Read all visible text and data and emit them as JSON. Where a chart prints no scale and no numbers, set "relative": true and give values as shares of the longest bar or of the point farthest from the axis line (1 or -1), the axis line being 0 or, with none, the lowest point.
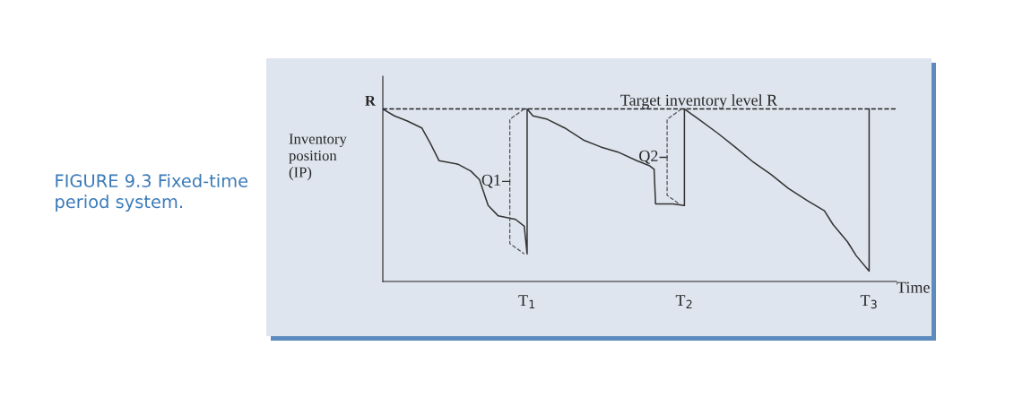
{
  "chart_data": {
    "type": "line",
    "title": "FIGURE 9.3 Fixed-time period system.",
    "xlabel": "Time",
    "ylabel": "Inventory\nposition\n(IP)",
    "relative": true,
    "xlim": [
      0,
      3.56
    ],
    "xticks": [
      {
        "value": 1,
        "label": "T$_{1}$"
      },
      {
        "value": 2.09,
        "label": "T$_{2}$"
      },
      {
        "value": 3.37,
        "label": "T$_{3}$"
      }
    ],
    "series": [
      {
        "color": "#333333",
        "x": [
          0,
          0.08,
          0.17,
          0.27,
          0.33,
          0.39,
          0.52,
          0.61,
          0.67,
          0.73,
          0.8,
          0.86,
          0.92,
          0.98,
          1,
          1,
          1.04,
          1.14,
          1.26,
          1.39,
          1.51,
          1.63,
          1.76,
          1.85,
          1.88,
          1.89,
          2.01,
          2.09,
          2.09,
          2.19,
          2.32,
          2.44,
          2.57,
          2.69,
          2.81,
          2.94,
          3.06,
          3.12,
          3.22,
          3.28,
          3.37,
          3.37
        ],
        "values": [
          1,
          0.96,
          0.93,
          0.89,
          0.8,
          0.7,
          0.68,
          0.64,
          0.59,
          0.44,
          0.38,
          0.37,
          0.36,
          0.32,
          0.16,
          1,
          0.96,
          0.94,
          0.89,
          0.82,
          0.78,
          0.75,
          0.7,
          0.67,
          0.65,
          0.45,
          0.45,
          0.44,
          1,
          0.94,
          0.86,
          0.78,
          0.69,
          0.62,
          0.54,
          0.47,
          0.41,
          0.33,
          0.23,
          0.15,
          0.06,
          1
        ]
      }
    ],
    "ref_lines": [
      {
        "axis": "y",
        "value": 1,
        "label": "R",
        "line_style": "dashed",
        "color": "#222222"
      }
    ],
    "annotations": [
      {
        "text": "Target inventory level R",
        "x": 2.19,
        "y": 1
      },
      "Q1",
      "Q2"
    ],
    "line_style": "solid",
    "marker": "none",
    "grid": false,
    "legend": false
  }
}
